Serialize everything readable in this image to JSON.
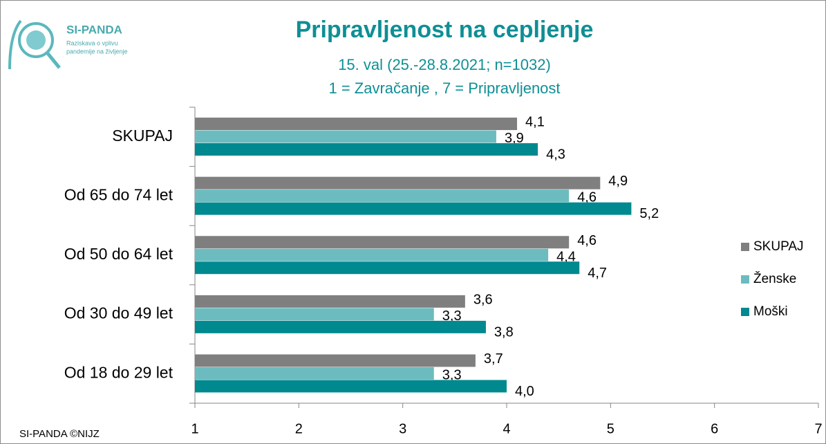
{
  "logo": {
    "name": "SI-PANDA",
    "line1": "Raziskava o vplivu",
    "line2": "pandemije na življenje"
  },
  "footer": "SI-PANDA ©NIJZ",
  "chart_data": {
    "type": "hbar",
    "title": "Pripravljenost na cepljenje",
    "subtitle": [
      "15. val (25.-28.8.2021; n=1032)",
      "1 = Zavračanje , 7 = Pripravljenost"
    ],
    "categories": [
      "SKUPAJ",
      "Od 65 do 74 let",
      "Od 50 do 64 let",
      "Od 30 do 49 let",
      "Od 18 do 29 let"
    ],
    "series": [
      {
        "name": "SKUPAJ",
        "color": "#7f7f7f",
        "values": [
          4.1,
          4.9,
          4.6,
          3.6,
          3.7
        ],
        "value_labels": [
          "4,1",
          "4,9",
          "4,6",
          "3,6",
          "3,7"
        ]
      },
      {
        "name": "Ženske",
        "color": "#6cbcbf",
        "values": [
          3.9,
          4.6,
          4.4,
          3.3,
          3.3
        ],
        "value_labels": [
          "3,9",
          "4,6",
          "4,4",
          "3,3",
          "3,3"
        ]
      },
      {
        "name": "Moški",
        "color": "#00898f",
        "values": [
          4.3,
          5.2,
          4.7,
          3.8,
          4.0
        ],
        "value_labels": [
          "4,3",
          "5,2",
          "4,7",
          "3,8",
          "4,0"
        ]
      }
    ],
    "xlim": [
      1,
      7
    ],
    "xticks": [
      1,
      2,
      3,
      4,
      5,
      6,
      7
    ],
    "legend": "right"
  }
}
